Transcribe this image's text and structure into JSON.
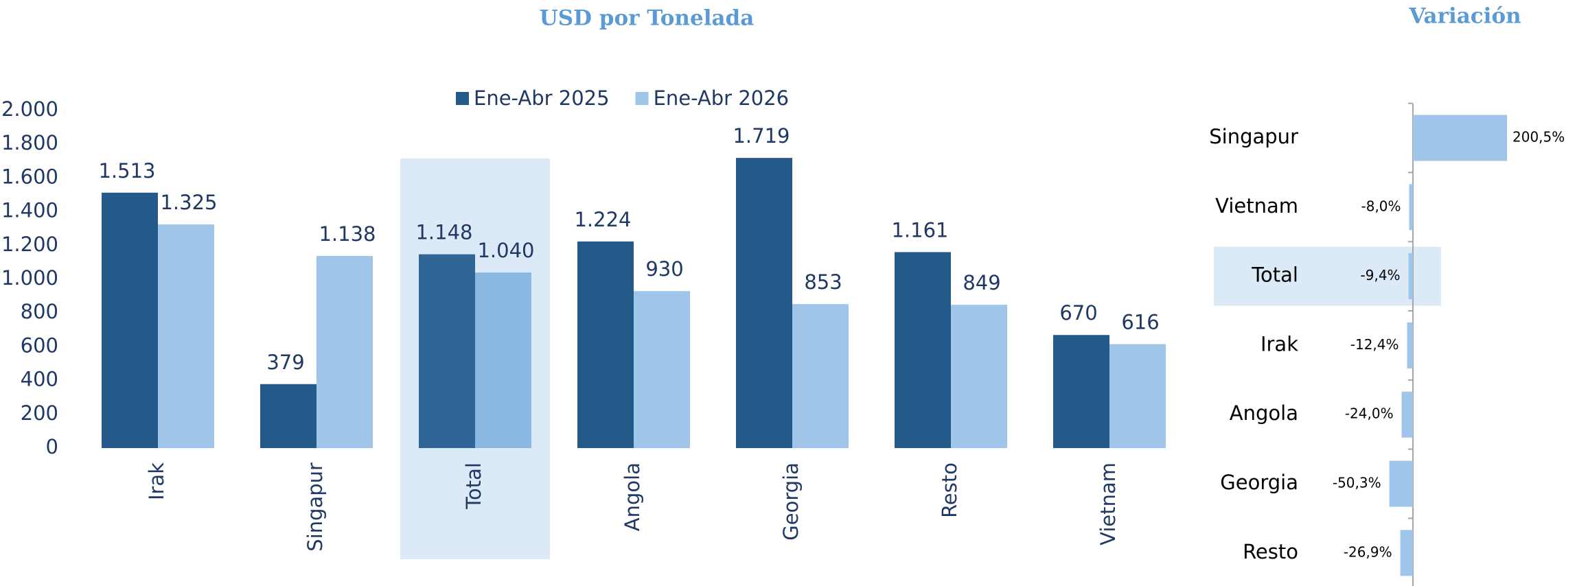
{
  "chart_data": [
    {
      "type": "bar",
      "title": "USD por Tonelada",
      "categories": [
        "Irak",
        "Singapur",
        "Total",
        "Angola",
        "Georgia",
        "Resto",
        "Vietnam"
      ],
      "highlight": "Total",
      "series": [
        {
          "name": "Ene-Abr 2025",
          "color": "#245a8a",
          "highlight_color": "#2e6496",
          "values": [
            1513,
            379,
            1148,
            1224,
            1719,
            1161,
            670
          ],
          "value_labels": [
            "1.513",
            "379",
            "1.148",
            "1.224",
            "1.719",
            "1.161",
            "670"
          ]
        },
        {
          "name": "Ene-Abr 2026",
          "color": "#9fc5e8",
          "highlight_color": "#8ab8e3",
          "values": [
            1325,
            1138,
            1040,
            930,
            853,
            849,
            616
          ],
          "value_labels": [
            "1.325",
            "1.138",
            "1.040",
            "930",
            "853",
            "849",
            "616"
          ]
        }
      ],
      "ylim": [
        0,
        2000
      ],
      "yticks": [
        0,
        200,
        400,
        600,
        800,
        {
          "value": 1000,
          "label": "1.000"
        },
        {
          "value": 1200,
          "label": "1.200"
        },
        {
          "value": 1400,
          "label": "1.400"
        },
        {
          "value": 1600,
          "label": "1.600"
        },
        {
          "value": 1800,
          "label": "1.800"
        },
        {
          "value": 2000,
          "label": "2.000"
        }
      ],
      "legend": "top"
    },
    {
      "type": "hbar",
      "title": "Variación",
      "categories": [
        "Singapur",
        "Vietnam",
        "Total",
        "Irak",
        "Angola",
        "Georgia",
        "Resto"
      ],
      "highlight": "Total",
      "color": "#9fc5e8",
      "values": [
        200.5,
        -8.0,
        -9.4,
        -12.4,
        -24.0,
        -50.3,
        -26.9
      ],
      "value_labels": [
        "200,5%",
        "-8,0%",
        "-9,4%",
        "-12,4%",
        "-24,0%",
        "-50,3%",
        "-26,9%"
      ]
    }
  ]
}
